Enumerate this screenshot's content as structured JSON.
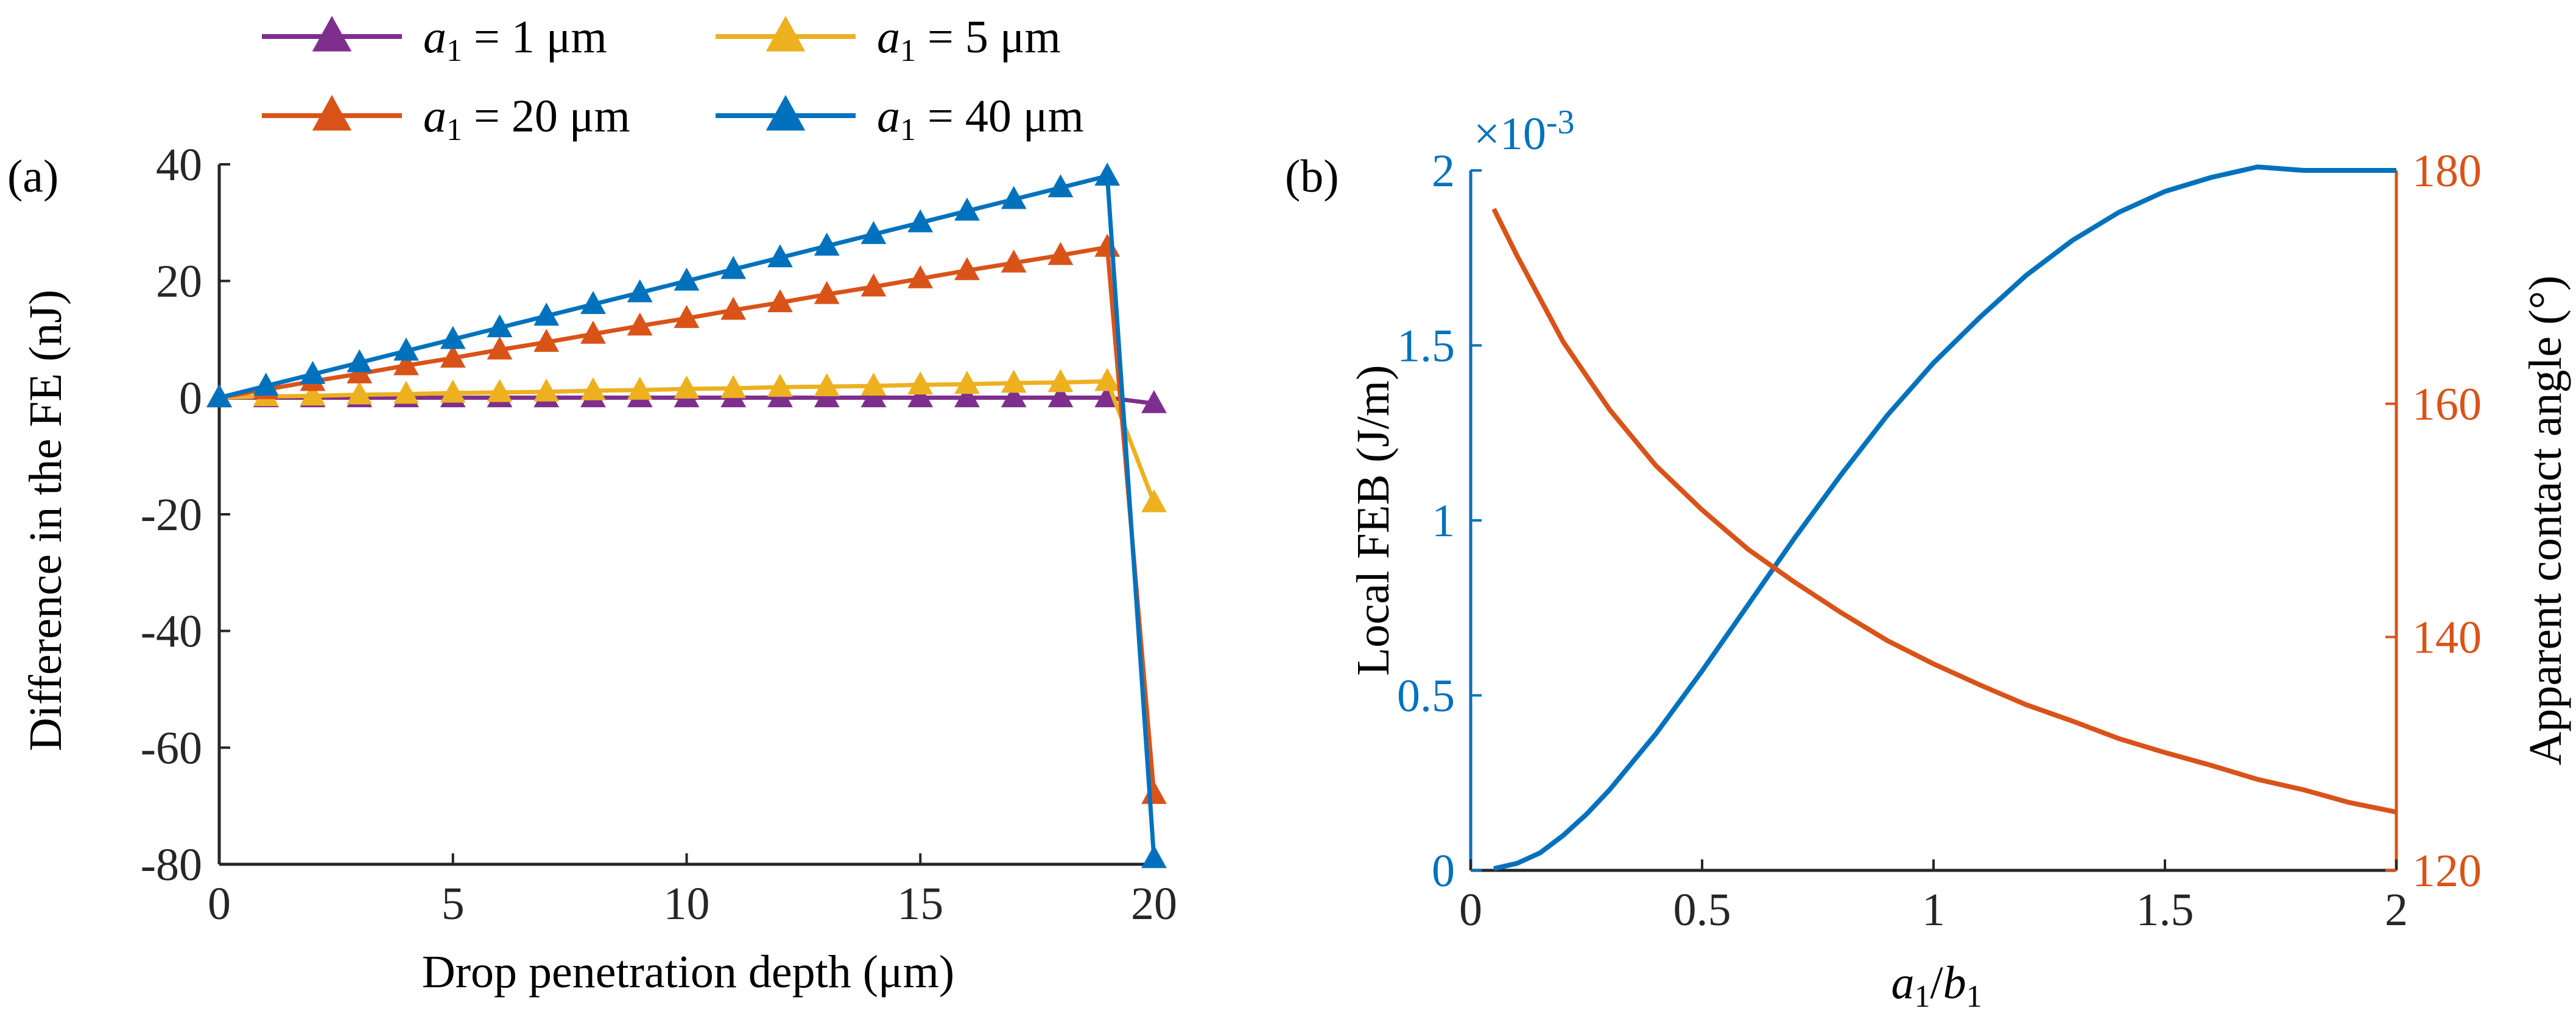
{
  "colors": {
    "axis": "#262626",
    "purple": "#7E2F8E",
    "orange": "#D95319",
    "yellow": "#EDB120",
    "blue": "#0072BD"
  },
  "panel_a": {
    "label": "(a)"
  },
  "panel_b": {
    "label": "(b)",
    "exponent_prefix": "×10",
    "exponent": "-3"
  },
  "legend": {
    "items": [
      {
        "var": "a",
        "sub": "1",
        "text": " = 1 μm",
        "color": "#7E2F8E"
      },
      {
        "var": "a",
        "sub": "1",
        "text": " = 5 μm",
        "color": "#EDB120"
      },
      {
        "var": "a",
        "sub": "1",
        "text": " = 20 μm",
        "color": "#D95319"
      },
      {
        "var": "a",
        "sub": "1",
        "text": " = 40 μm",
        "color": "#0072BD"
      }
    ]
  },
  "chart_data": [
    {
      "type": "line",
      "markers": "triangle",
      "xlabel": "Drop penetration depth (μm)",
      "ylabel": "Difference in the FE (nJ)",
      "xlim": [
        0,
        20
      ],
      "ylim": [
        -80,
        40
      ],
      "xticks": [
        0,
        5,
        10,
        15,
        20
      ],
      "yticks": [
        -80,
        -60,
        -40,
        -20,
        0,
        20,
        40
      ],
      "xtick_labels": [
        "0",
        "5",
        "10",
        "15",
        "20"
      ],
      "ytick_labels": [
        "-80",
        "-60",
        "-40",
        "-20",
        "0",
        "20",
        "40"
      ],
      "grid": false,
      "legend_position": "top (outside, above plot)",
      "x": [
        0,
        1,
        2,
        3,
        4,
        5,
        6,
        7,
        8,
        9,
        10,
        11,
        12,
        13,
        14,
        15,
        16,
        17,
        18,
        19,
        20
      ],
      "series": [
        {
          "name": "a1 = 1 μm",
          "color": "#7E2F8E",
          "values": [
            0,
            0,
            0,
            0,
            0,
            0,
            0,
            0,
            0,
            0,
            0,
            0,
            0,
            0,
            0,
            0,
            0,
            0,
            0,
            0,
            -1
          ]
        },
        {
          "name": "a1 = 5 μm",
          "color": "#EDB120",
          "values": [
            0,
            0.2,
            0.3,
            0.5,
            0.6,
            0.8,
            0.9,
            1.0,
            1.2,
            1.3,
            1.5,
            1.6,
            1.8,
            1.9,
            2.0,
            2.2,
            2.3,
            2.5,
            2.6,
            2.8,
            -18
          ]
        },
        {
          "name": "a1 = 20 μm",
          "color": "#D95319",
          "values": [
            0,
            1.4,
            2.8,
            4.1,
            5.5,
            6.8,
            8.2,
            9.5,
            10.9,
            12.3,
            13.6,
            15.0,
            16.3,
            17.7,
            19.0,
            20.4,
            21.8,
            23.1,
            24.4,
            25.8,
            -68
          ]
        },
        {
          "name": "a1 = 40 μm",
          "color": "#0072BD",
          "values": [
            0,
            2.0,
            4.0,
            6.0,
            8.0,
            10.0,
            12.0,
            14.0,
            16.0,
            18.0,
            20.0,
            22.0,
            24.0,
            26.0,
            28.0,
            30.0,
            32.0,
            34.0,
            36.0,
            38.0,
            -79
          ]
        }
      ]
    },
    {
      "type": "line",
      "dual_axis": true,
      "xlabel_var": "a",
      "xlabel_sub": "1",
      "xlabel_sep": "/",
      "xlabel_var2": "b",
      "xlabel_sub2": "1",
      "ylabel_left": "Local FEB (J/m)",
      "ylabel_right": "Apparent contact angle (°)",
      "xlim": [
        0,
        2
      ],
      "ylim_left": [
        0,
        0.002
      ],
      "ylim_right": [
        120,
        180
      ],
      "xticks": [
        0,
        0.5,
        1,
        1.5,
        2
      ],
      "xtick_labels": [
        "0",
        "0.5",
        "1",
        "1.5",
        "2"
      ],
      "yticks_left": [
        0,
        0.5,
        1,
        1.5,
        2
      ],
      "ytick_labels_left": [
        "0",
        "0.5",
        "1",
        "1.5",
        "2"
      ],
      "yticks_right": [
        120,
        140,
        160,
        180
      ],
      "ytick_labels_right": [
        "120",
        "140",
        "160",
        "180"
      ],
      "grid": false,
      "series": [
        {
          "name": "Local FEB",
          "axis": "left",
          "color": "#0072BD",
          "x": [
            0.05,
            0.1,
            0.15,
            0.2,
            0.25,
            0.3,
            0.4,
            0.5,
            0.6,
            0.7,
            0.8,
            0.9,
            1.0,
            1.1,
            1.2,
            1.3,
            1.4,
            1.5,
            1.6,
            1.7,
            1.8,
            1.9,
            2.0
          ],
          "values": [
            5e-06,
            2e-05,
            5e-05,
            0.0001,
            0.00016,
            0.00023,
            0.00039,
            0.00057,
            0.00076,
            0.00095,
            0.00113,
            0.0013,
            0.00145,
            0.00158,
            0.0017,
            0.0018,
            0.00188,
            0.00194,
            0.00198,
            0.00201,
            0.002,
            0.002,
            0.002
          ]
        },
        {
          "name": "Apparent contact angle",
          "axis": "right",
          "color": "#D95319",
          "x": [
            0.05,
            0.1,
            0.2,
            0.3,
            0.4,
            0.5,
            0.6,
            0.7,
            0.8,
            0.9,
            1.0,
            1.1,
            1.2,
            1.3,
            1.4,
            1.5,
            1.6,
            1.7,
            1.8,
            1.9,
            2.0
          ],
          "values": [
            176.7,
            172.7,
            165.3,
            159.5,
            154.7,
            150.9,
            147.5,
            144.7,
            142.1,
            139.7,
            137.7,
            135.9,
            134.2,
            132.8,
            131.3,
            130.1,
            129.0,
            127.8,
            126.9,
            125.8,
            125.0
          ]
        }
      ]
    }
  ]
}
